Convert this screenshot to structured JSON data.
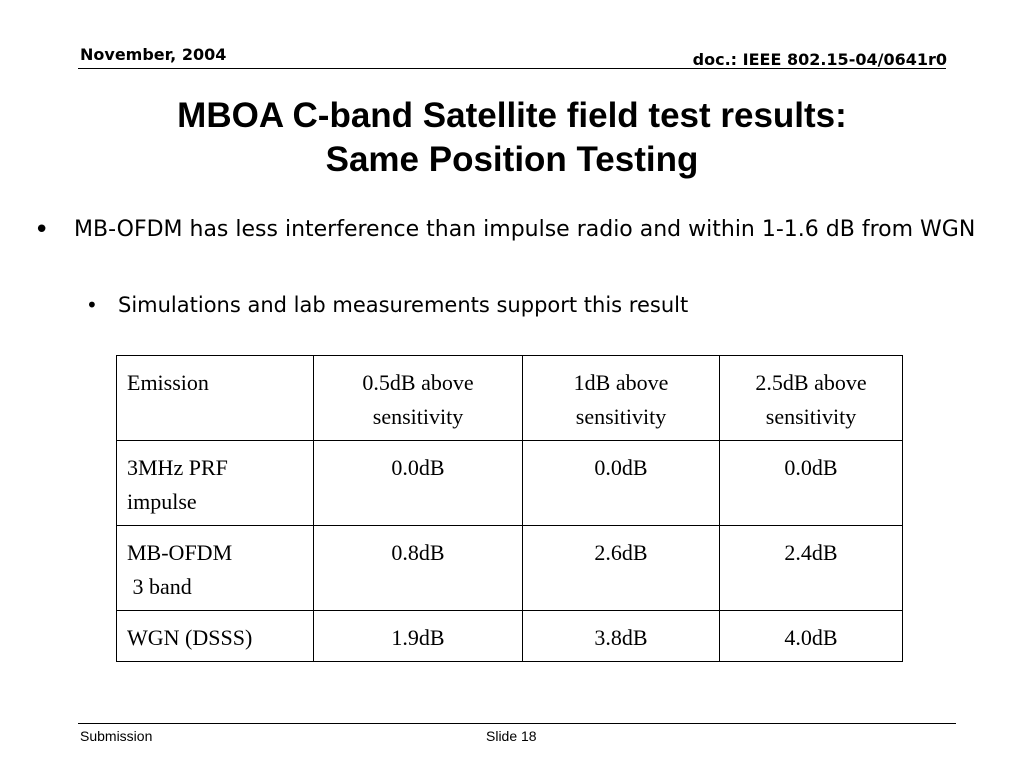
{
  "header": {
    "date": "November, 2004",
    "doc_id": "doc.: IEEE 802.15-04/0641r0"
  },
  "title": {
    "line1": "MBOA C-band Satellite field test results:",
    "line2": "Same Position Testing"
  },
  "bullets": {
    "level1": "MB-OFDM has less interference than impulse radio and within 1-1.6 dB from WGN",
    "level2": "Simulations and lab measurements support this result"
  },
  "table": {
    "header": [
      [
        "Emission"
      ],
      [
        "0.5dB above",
        "sensitivity"
      ],
      [
        "1dB above",
        "sensitivity"
      ],
      [
        "2.5dB above",
        "sensitivity"
      ]
    ],
    "rows": [
      [
        [
          "3MHz PRF",
          "impulse"
        ],
        [
          "0.0dB"
        ],
        [
          "0.0dB"
        ],
        [
          "0.0dB"
        ]
      ],
      [
        [
          "MB-OFDM",
          " 3 band"
        ],
        [
          "0.8dB"
        ],
        [
          "2.6dB"
        ],
        [
          "2.4dB"
        ]
      ],
      [
        [
          "WGN (DSSS)"
        ],
        [
          "1.9dB"
        ],
        [
          "3.8dB"
        ],
        [
          "4.0dB"
        ]
      ]
    ]
  },
  "footer": {
    "left": "Submission",
    "center": "Slide 18"
  }
}
